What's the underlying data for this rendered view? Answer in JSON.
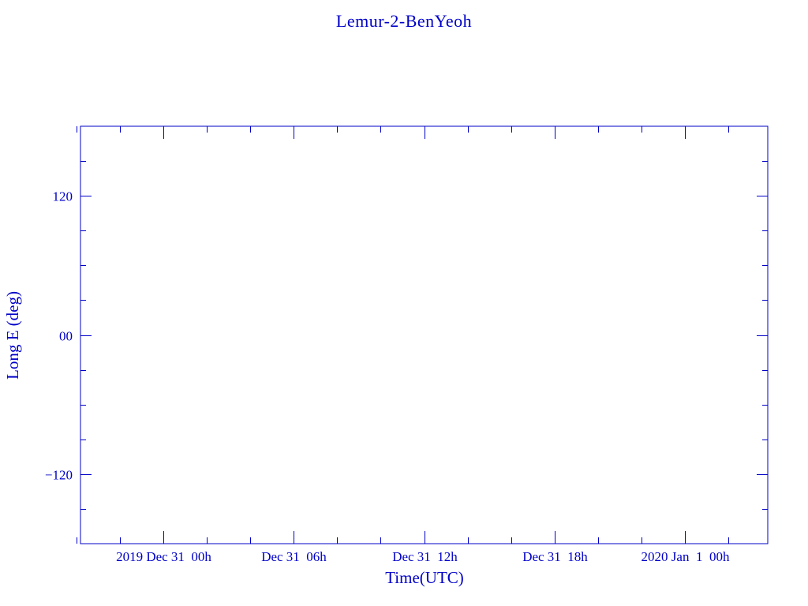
{
  "chart_data": {
    "type": "line",
    "title": "Lemur-2-BenYeoh",
    "xlabel": "Time(UTC)",
    "ylabel": "Long E (deg)",
    "xlim": [
      "2019-12-30T20:10:00Z",
      "2020-01-01T03:50:00Z"
    ],
    "ylim": [
      -180,
      180
    ],
    "x_major_ticks": [
      {
        "time": "2019-12-31T00:00:00Z",
        "label": "2019 Dec 31  00h"
      },
      {
        "time": "2019-12-31T06:00:00Z",
        "label": "Dec 31  06h"
      },
      {
        "time": "2019-12-31T12:00:00Z",
        "label": "Dec 31  12h"
      },
      {
        "time": "2019-12-31T18:00:00Z",
        "label": "Dec 31  18h"
      },
      {
        "time": "2020-01-01T00:00:00Z",
        "label": "2020 Jan  1  00h"
      }
    ],
    "x_minor_tick_hours": 2,
    "y_major_ticks": [
      {
        "value": 120,
        "label": "120"
      },
      {
        "value": 0,
        "label": "00"
      },
      {
        "value": -120,
        "label": "−120"
      }
    ],
    "y_minor_tick_step": 30,
    "series": [],
    "grid": false,
    "color": "#0000c8"
  }
}
